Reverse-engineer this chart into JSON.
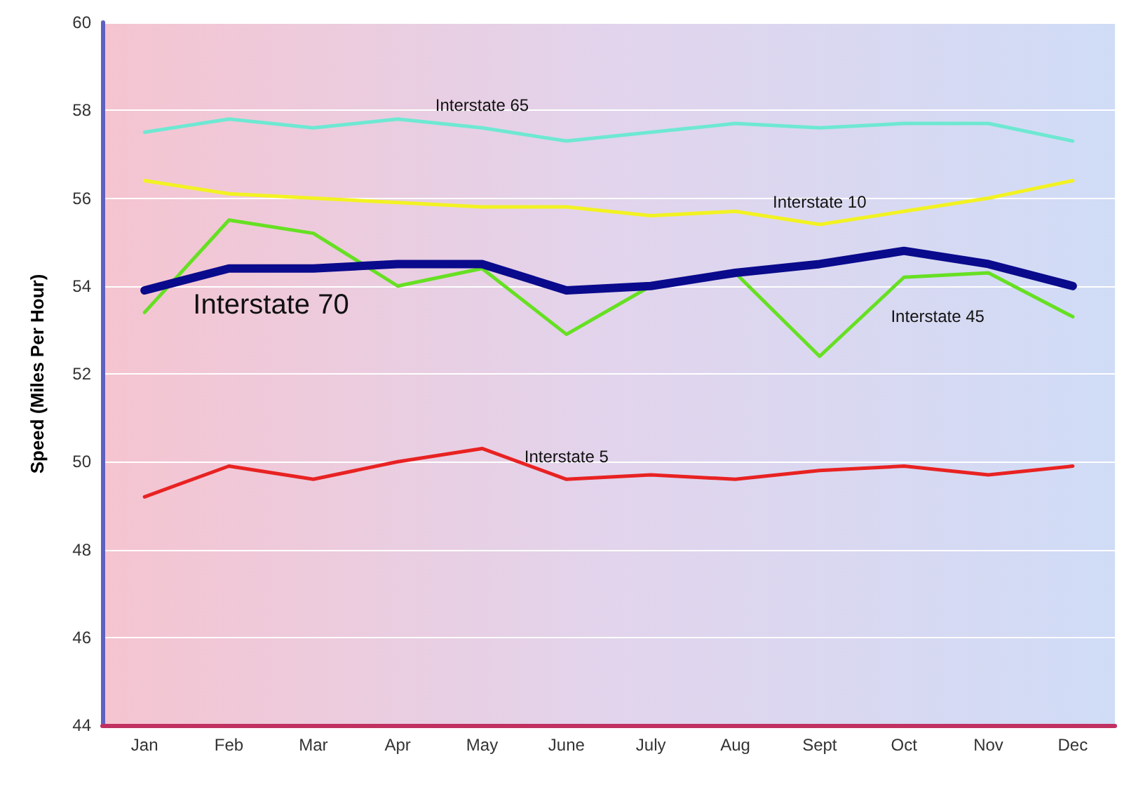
{
  "chart_data": {
    "type": "line",
    "ylabel": "Speed (Miles Per Hour)",
    "categories": [
      "Jan",
      "Feb",
      "Mar",
      "Apr",
      "May",
      "June",
      "July",
      "Aug",
      "Sept",
      "Oct",
      "Nov",
      "Dec"
    ],
    "series": [
      {
        "name": "Interstate 65",
        "color": "#6ee8d2",
        "values": [
          57.5,
          57.8,
          57.6,
          57.8,
          57.6,
          57.3,
          57.5,
          57.7,
          57.6,
          57.7,
          57.7,
          57.3
        ]
      },
      {
        "name": "Interstate 10",
        "color": "#f2f222",
        "values": [
          56.4,
          56.1,
          56.0,
          55.9,
          55.8,
          55.8,
          55.6,
          55.7,
          55.4,
          55.7,
          56.0,
          56.4
        ]
      },
      {
        "name": "Interstate 45",
        "color": "#66e022",
        "values": [
          53.4,
          55.5,
          55.2,
          54.0,
          54.4,
          52.9,
          54.0,
          54.3,
          52.4,
          54.2,
          54.3,
          53.3
        ]
      },
      {
        "name": "Interstate 70",
        "color": "#0a0a8c",
        "values": [
          53.9,
          54.4,
          54.4,
          54.5,
          54.5,
          53.9,
          54.0,
          54.3,
          54.5,
          54.8,
          54.5,
          54.0
        ]
      },
      {
        "name": "Interstate 5",
        "color": "#e82222",
        "values": [
          49.2,
          49.9,
          49.6,
          50.0,
          50.3,
          49.6,
          49.7,
          49.6,
          49.8,
          49.9,
          49.7,
          49.9
        ]
      }
    ],
    "ylim": [
      44,
      60
    ],
    "yticks": [
      44,
      46,
      48,
      50,
      52,
      54,
      56,
      58,
      60
    ],
    "grid": "y",
    "legend": false,
    "marker": "none",
    "line_style": "solid"
  }
}
